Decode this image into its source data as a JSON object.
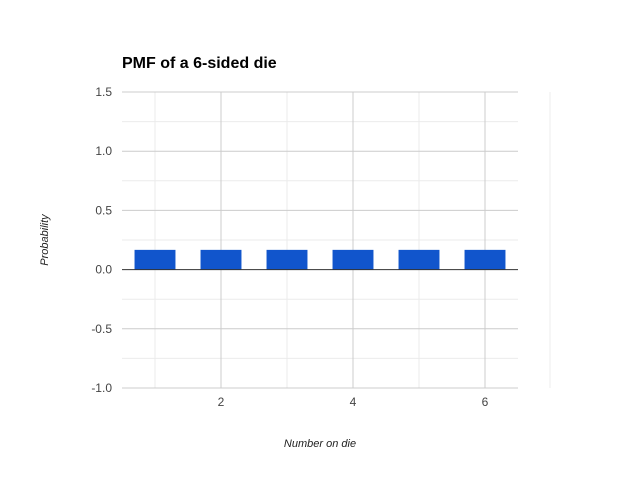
{
  "chart_data": {
    "type": "bar",
    "title": "PMF of a 6-sided die",
    "xlabel": "Number on die",
    "ylabel": "Probability",
    "x": [
      1,
      2,
      3,
      4,
      5,
      6
    ],
    "values": [
      0.1667,
      0.1667,
      0.1667,
      0.1667,
      0.1667,
      0.1667
    ],
    "xlim": [
      0.5,
      6.5
    ],
    "ylim": [
      -1.0,
      1.5
    ],
    "x_ticks": [
      2,
      4,
      6
    ],
    "x_tick_labels": [
      "2",
      "4",
      "6"
    ],
    "y_ticks": [
      -1.0,
      -0.5,
      0.0,
      0.5,
      1.0,
      1.5
    ],
    "y_tick_labels": [
      "-1.0",
      "-0.5",
      "0.0",
      "0.5",
      "1.0",
      "1.5"
    ],
    "bar_color": "#1155CC",
    "grid": true,
    "legend": "none"
  }
}
